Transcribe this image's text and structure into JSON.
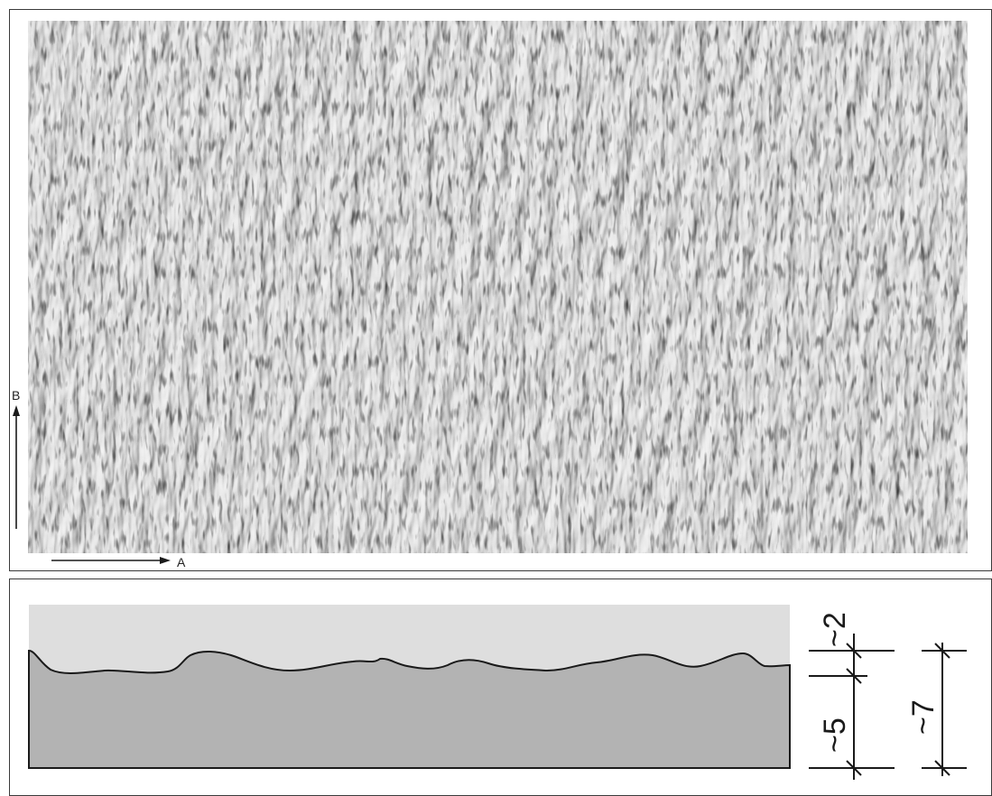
{
  "top_view": {
    "axis_a_label": "A",
    "axis_b_label": "B",
    "texture_color": "#cfcfcf"
  },
  "section_view": {
    "dimensions": {
      "texture_depth": "~2",
      "base_thickness": "~5",
      "total_thickness": "~7"
    },
    "colors": {
      "base": "#b3b3b3",
      "overlay": "#dedede",
      "outline": "#1a1a1a"
    }
  }
}
